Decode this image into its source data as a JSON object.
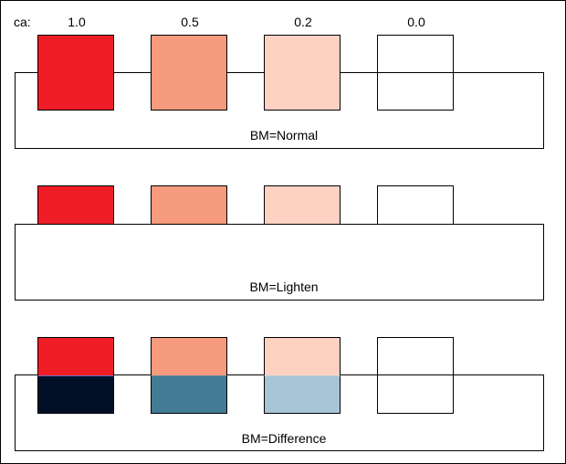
{
  "ca_label": "ca:",
  "alpha_values": [
    "1.0",
    "0.5",
    "0.2",
    "0.0"
  ],
  "sections": [
    {
      "label": "BM=Normal",
      "square_colors_above": [
        "#ef1e26",
        "#f69b7d",
        "#fdd2c3",
        "#ffffff"
      ],
      "square_colors_overlap": [
        "#ef1e26",
        "#f69b7d",
        "#fdd2c3",
        "#ffffff"
      ]
    },
    {
      "label": "BM=Lighten",
      "square_colors_above": [
        "#ef1e26",
        "#f69b7d",
        "#fdd2c3",
        "#ffffff"
      ],
      "square_colors_overlap": [
        "#ffffff",
        "#ffffff",
        "#ffffff",
        "#ffffff"
      ]
    },
    {
      "label": "BM=Difference",
      "square_colors_above": [
        "#ef1e26",
        "#f69b7d",
        "#fdd2c3",
        "#ffffff"
      ],
      "square_colors_overlap": [
        "#011027",
        "#437b95",
        "#a7c5d6",
        "#ffffff"
      ]
    }
  ]
}
